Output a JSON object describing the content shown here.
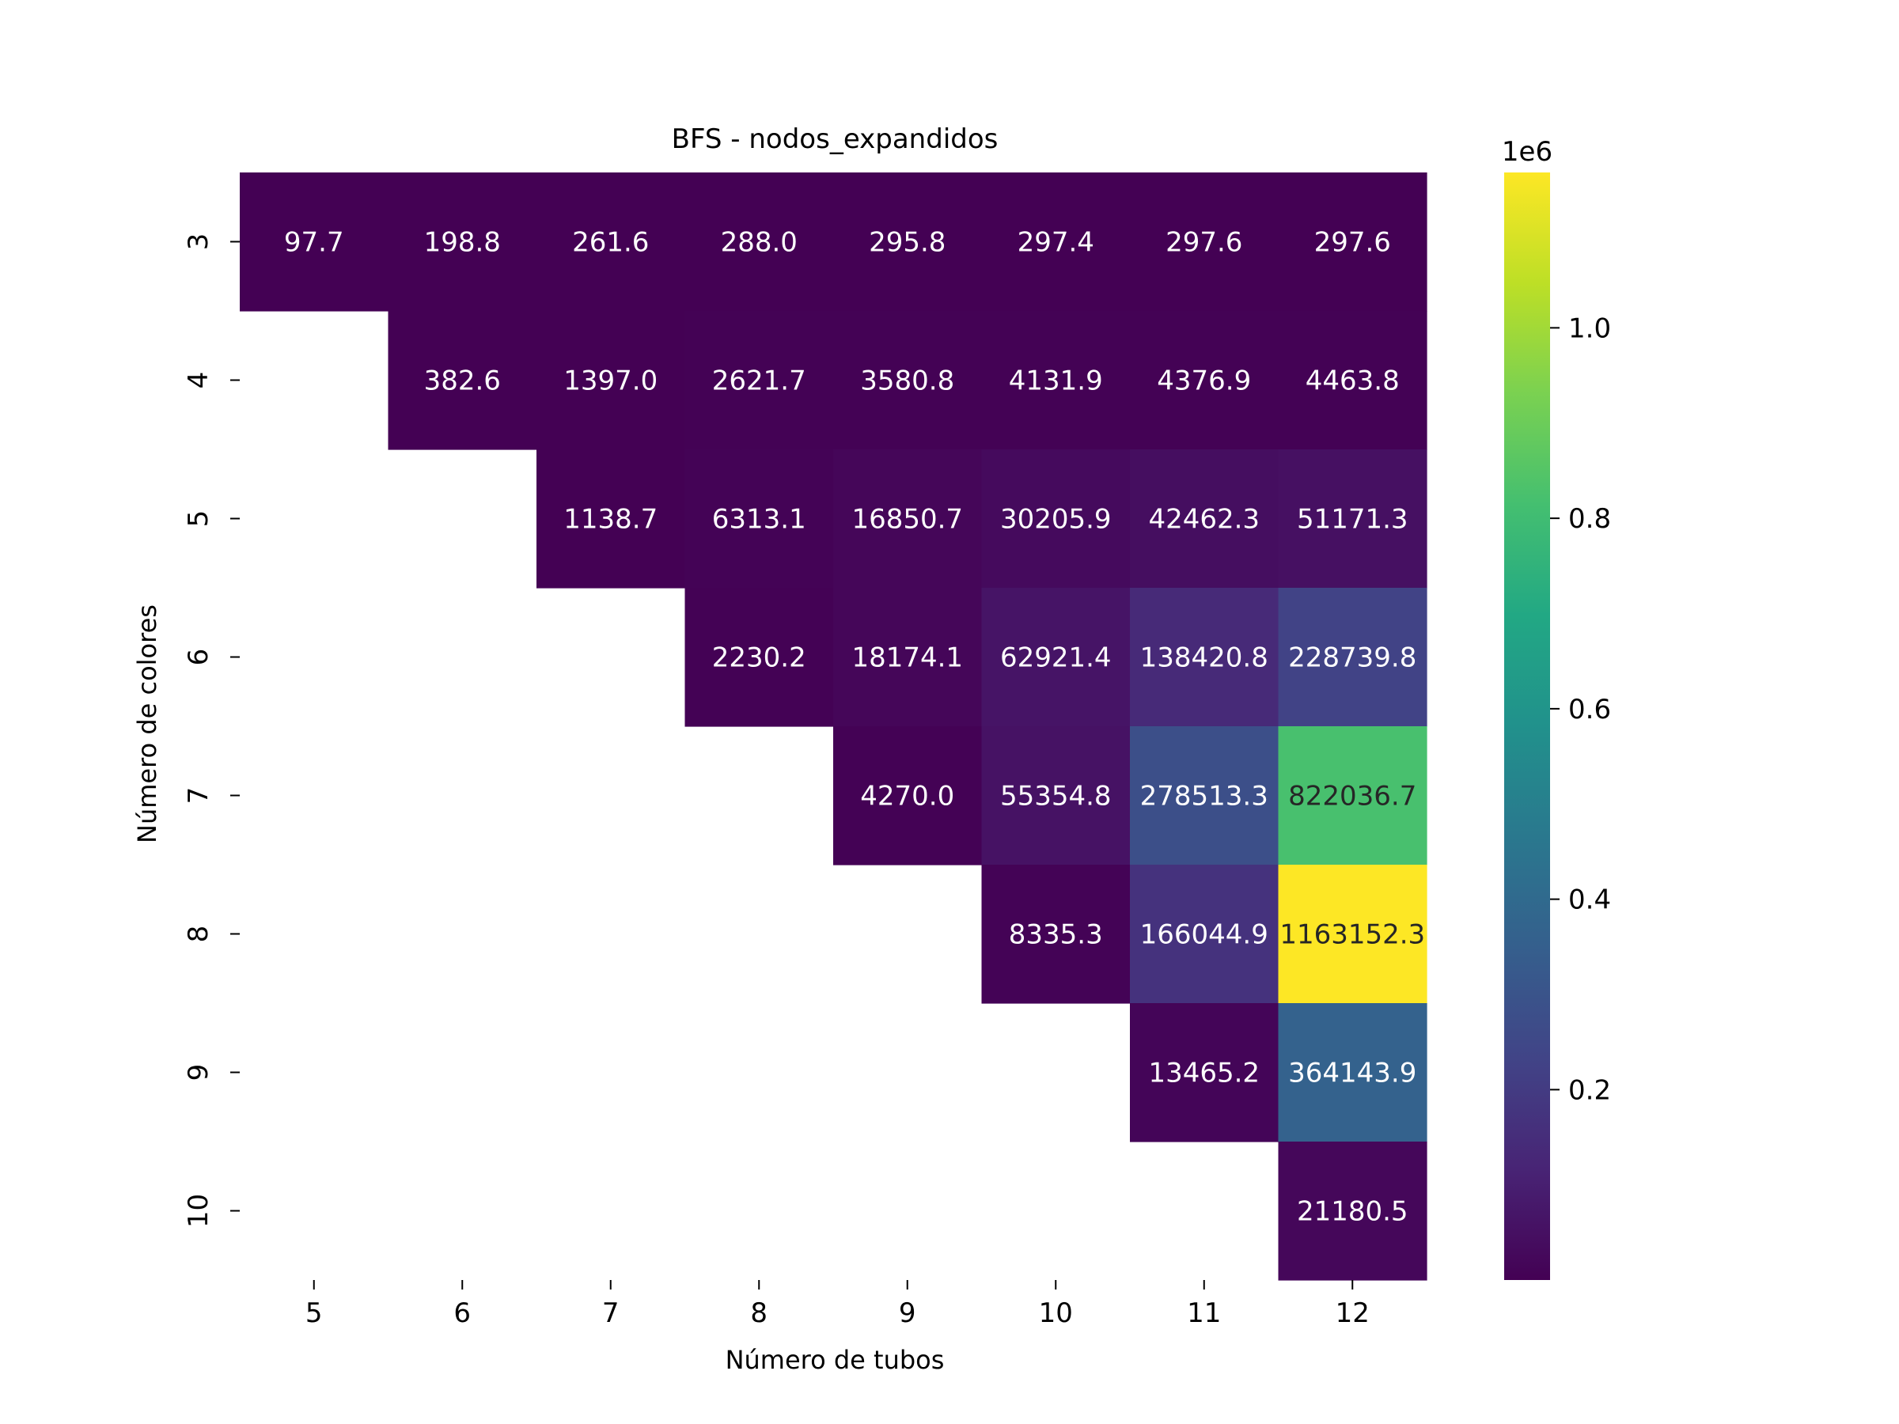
{
  "chart_data": {
    "type": "heatmap",
    "title": "BFS - nodos_expandidos",
    "xlabel": "Número de tubos",
    "ylabel": "Número de colores",
    "x_categories": [
      "5",
      "6",
      "7",
      "8",
      "9",
      "10",
      "11",
      "12"
    ],
    "y_categories": [
      "3",
      "4",
      "5",
      "6",
      "7",
      "8",
      "9",
      "10"
    ],
    "values": [
      [
        97.7,
        198.8,
        261.6,
        288.0,
        295.8,
        297.4,
        297.6,
        297.6
      ],
      [
        null,
        382.6,
        1397.0,
        2621.7,
        3580.8,
        4131.9,
        4376.9,
        4463.8
      ],
      [
        null,
        null,
        1138.7,
        6313.1,
        16850.7,
        30205.9,
        42462.3,
        51171.3
      ],
      [
        null,
        null,
        null,
        2230.2,
        18174.1,
        62921.4,
        138420.8,
        228739.8
      ],
      [
        null,
        null,
        null,
        null,
        4270.0,
        55354.8,
        278513.3,
        822036.7
      ],
      [
        null,
        null,
        null,
        null,
        null,
        8335.3,
        166044.9,
        1163152.3
      ],
      [
        null,
        null,
        null,
        null,
        null,
        null,
        13465.2,
        364143.9
      ],
      [
        null,
        null,
        null,
        null,
        null,
        null,
        null,
        21180.5
      ]
    ],
    "colormap": "viridis",
    "colorbar": {
      "min": 97.7,
      "max": 1163152.3,
      "ticks": [
        0.2,
        0.4,
        0.6,
        0.8,
        1.0
      ],
      "tick_labels": [
        "0.2",
        "0.4",
        "0.6",
        "0.8",
        "1.0"
      ],
      "multiplier_label": "1e6"
    }
  }
}
